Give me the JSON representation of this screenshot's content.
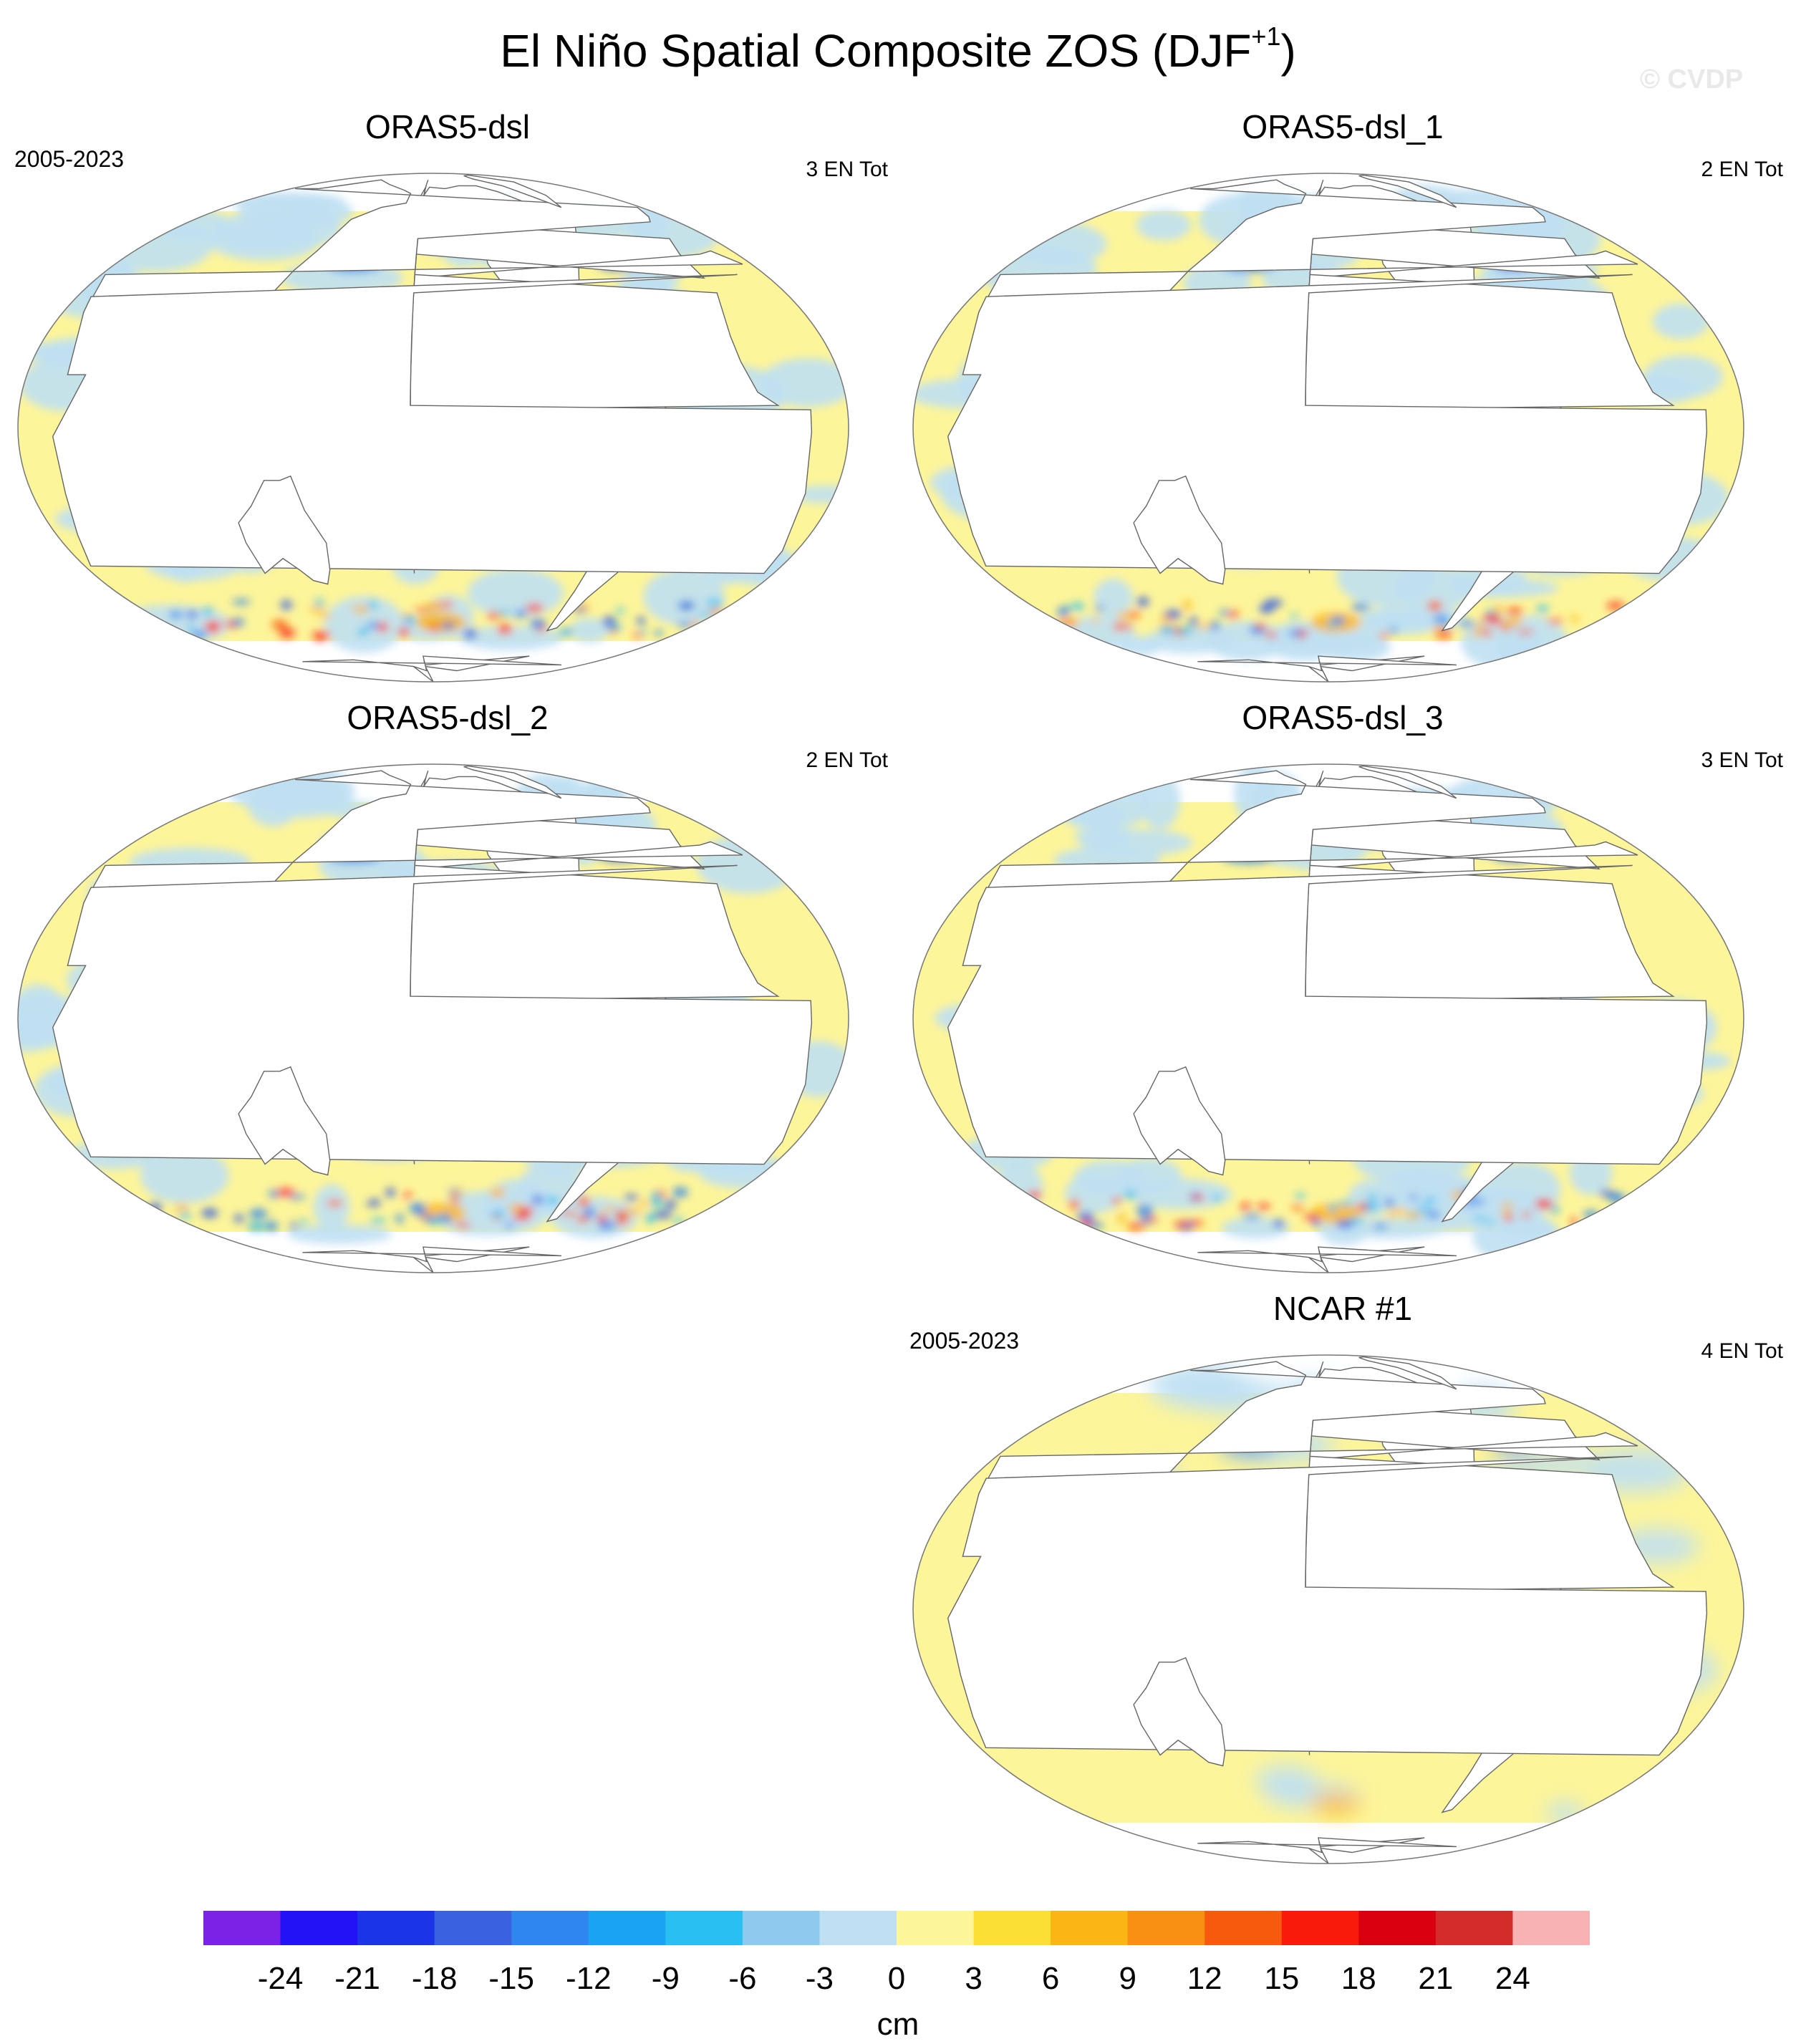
{
  "title": "El Niño Spatial Composite ZOS (DJF",
  "title_superscript": "+1",
  "title_suffix": ")",
  "watermark": "© CVDP",
  "panels": [
    {
      "title": "ORAS5-dsl",
      "left_label": "2005-2023",
      "right_label": "3 EN Tot",
      "style": "noisy"
    },
    {
      "title": "ORAS5-dsl_1",
      "left_label": "",
      "right_label": "2 EN Tot",
      "style": "noisy"
    },
    {
      "title": "ORAS5-dsl_2",
      "left_label": "",
      "right_label": "2 EN Tot",
      "style": "noisy"
    },
    {
      "title": "ORAS5-dsl_3",
      "left_label": "",
      "right_label": "3 EN Tot",
      "style": "noisy"
    },
    {
      "title": "NCAR #1",
      "left_label": "2005-2023",
      "right_label": "4 EN Tot",
      "style": "smooth"
    }
  ],
  "colorbar": {
    "units": "cm",
    "tick_labels": [
      "-24",
      "-21",
      "-18",
      "-15",
      "-12",
      "-9",
      "-6",
      "-3",
      "0",
      "3",
      "6",
      "9",
      "12",
      "15",
      "18",
      "21",
      "24"
    ],
    "colors": [
      "#7b22e6",
      "#2212f5",
      "#1c34e8",
      "#3a62e0",
      "#2f86ee",
      "#1aa3f0",
      "#29bff2",
      "#8ecaee",
      "#bfe0f2",
      "#fdf59a",
      "#fcdf35",
      "#fbb616",
      "#f98f13",
      "#f85a0d",
      "#f81b0c",
      "#d90010",
      "#d42b2b",
      "#f9b2b4"
    ]
  }
}
